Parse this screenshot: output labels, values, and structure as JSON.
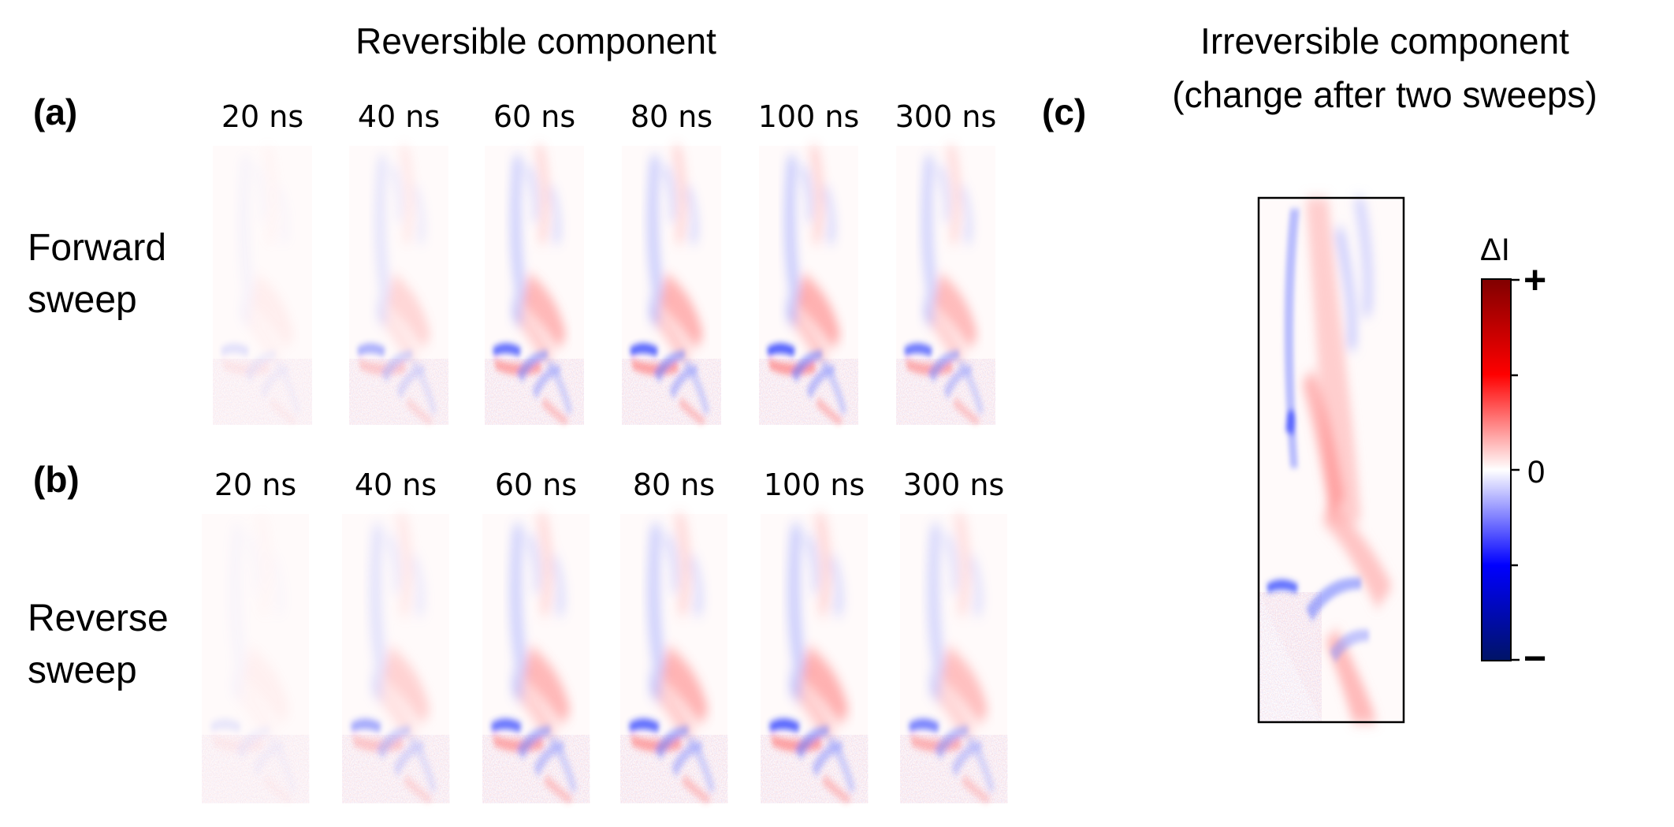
{
  "reversible": {
    "title": "Reversible component",
    "panel_a": {
      "letter": "(a)",
      "row_label": [
        "Forward",
        "sweep"
      ],
      "times": [
        "20 ns",
        "40 ns",
        "60 ns",
        "80 ns",
        "100 ns",
        "300 ns"
      ],
      "intensity": [
        0.15,
        0.45,
        0.85,
        0.9,
        0.95,
        0.8
      ]
    },
    "panel_b": {
      "letter": "(b)",
      "row_label": [
        "Reverse",
        "sweep"
      ],
      "times": [
        "20 ns",
        "40 ns",
        "60 ns",
        "80 ns",
        "100 ns",
        "300 ns"
      ],
      "intensity": [
        0.12,
        0.5,
        0.85,
        0.9,
        0.95,
        0.75
      ]
    }
  },
  "irreversible": {
    "letter": "(c)",
    "title": [
      "Irreversible component",
      "(change after two sweeps)"
    ]
  },
  "colorbar": {
    "label": "ΔI",
    "tick_plus": "+",
    "tick_zero": "0",
    "tick_minus": "−",
    "colormap": [
      "#001466",
      "#0000ff",
      "#ffffff",
      "#ff0000",
      "#800000"
    ]
  }
}
